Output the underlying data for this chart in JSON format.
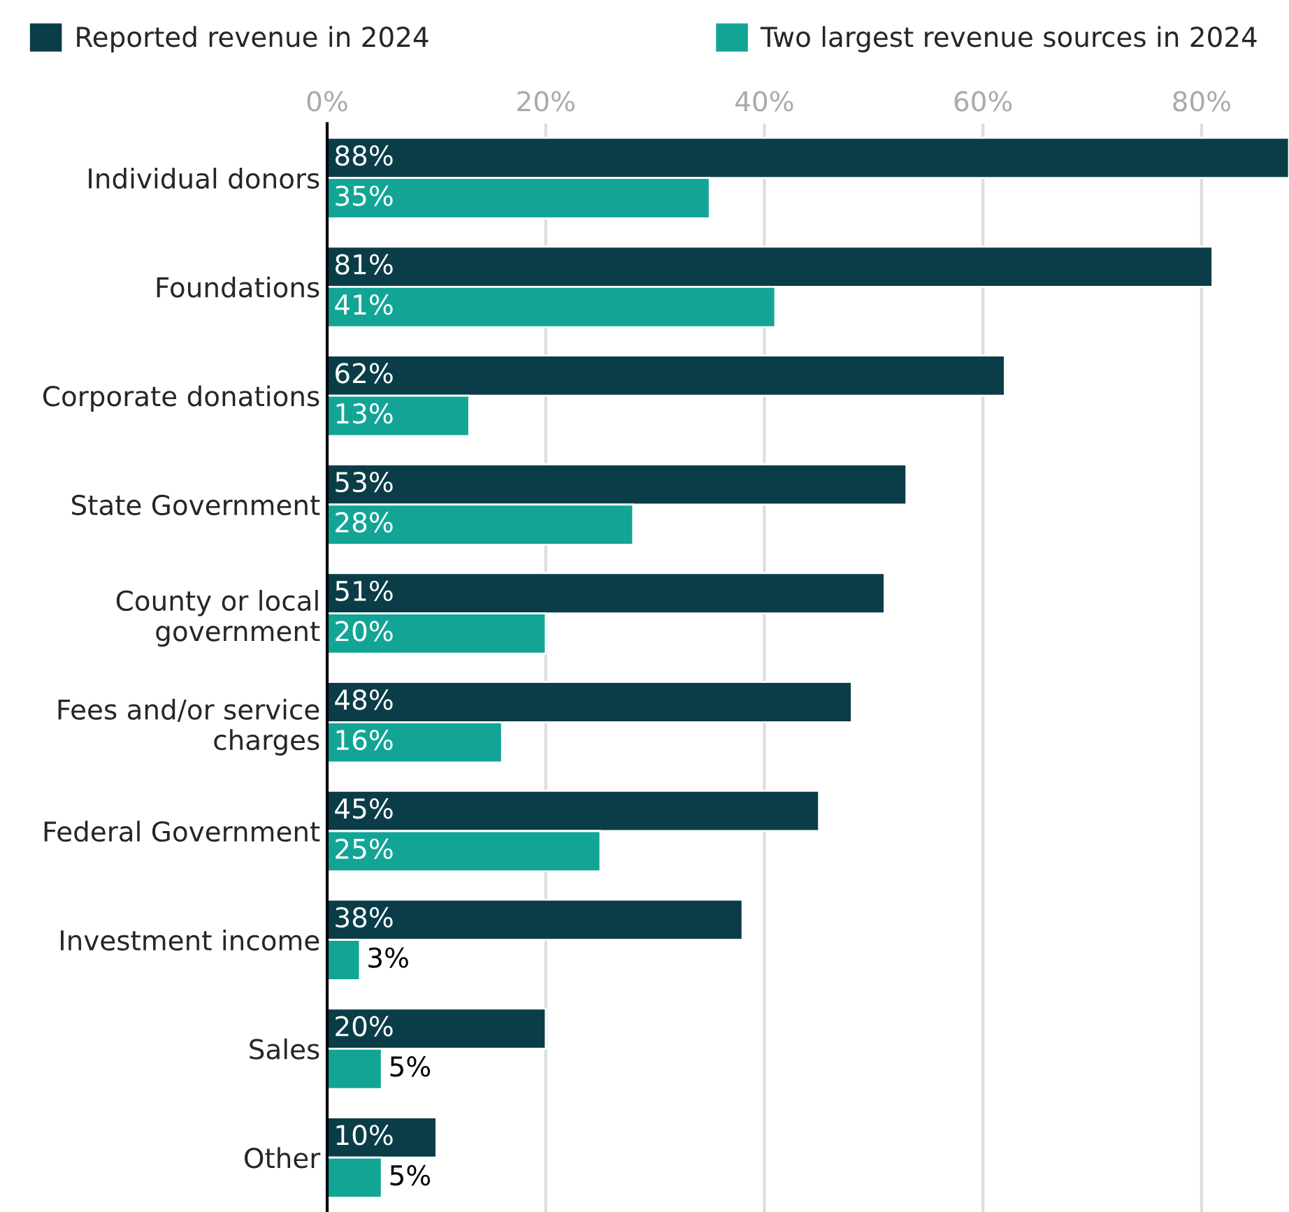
{
  "chart_data": {
    "type": "bar",
    "orientation": "horizontal",
    "categories": [
      "Individual donors",
      "Foundations",
      "Corporate donations",
      "State Government",
      "County or local\ngovernment",
      "Fees and/or service\ncharges",
      "Federal Government",
      "Investment income",
      "Sales",
      "Other"
    ],
    "series": [
      {
        "name": "Reported revenue in 2024",
        "color": "#0a3d47",
        "values": [
          88,
          81,
          62,
          53,
          51,
          48,
          45,
          38,
          20,
          10
        ],
        "value_labels": [
          "88%",
          "81%",
          "62%",
          "53%",
          "51%",
          "48%",
          "45%",
          "38%",
          "20%",
          "10%"
        ]
      },
      {
        "name": "Two largest revenue sources in 2024",
        "color": "#12a596",
        "values": [
          35,
          41,
          13,
          28,
          20,
          16,
          25,
          3,
          5,
          5
        ],
        "value_labels": [
          "35%",
          "41%",
          "13%",
          "28%",
          "20%",
          "16%",
          "25%",
          "3%",
          "5%",
          "5%"
        ]
      }
    ],
    "xlim": [
      0,
      88
    ],
    "xticks": [
      {
        "value": 0,
        "label": "0%"
      },
      {
        "value": 20,
        "label": "20%"
      },
      {
        "value": 40,
        "label": "40%"
      },
      {
        "value": 60,
        "label": "60%"
      },
      {
        "value": 80,
        "label": "80%"
      }
    ],
    "grid": "x",
    "legend": "top"
  }
}
